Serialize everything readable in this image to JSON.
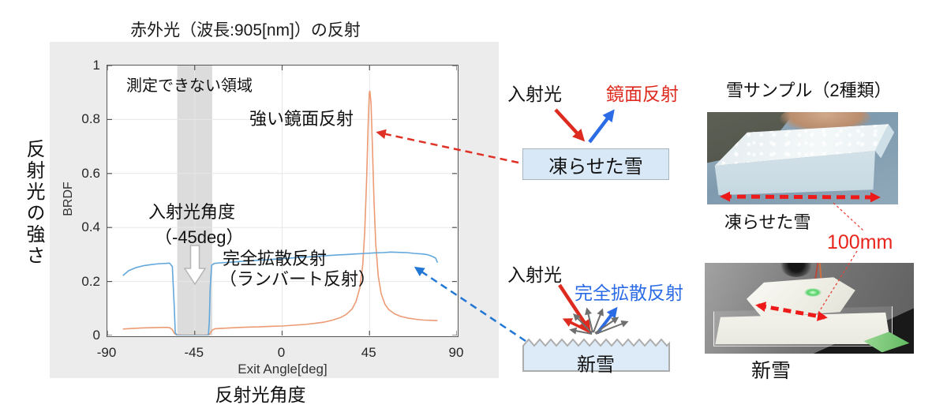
{
  "title": "赤外光（波長:905[nm]）の反射",
  "chart": {
    "y_axis_outer_label": "反射光の強さ",
    "x_axis_outer_label": "反射光角度",
    "annotations": {
      "unmeasurable_region": "測定できない領域",
      "strong_specular": "強い鏡面反射",
      "incident_angle_line1": "入射光角度",
      "incident_angle_line2": "（-45deg）",
      "perfect_diffuse_line1": "完全拡散反射",
      "perfect_diffuse_line2": "（ランバート反射）"
    }
  },
  "chart_data": {
    "type": "line",
    "title": "赤外光（波長:905[nm]）の反射",
    "xlabel": "Exit Angle[deg]",
    "ylabel": "BRDF",
    "xlim": [
      -90,
      90
    ],
    "ylim": [
      0,
      1
    ],
    "x_ticks": [
      "-90",
      "-45",
      "0",
      "45",
      "90"
    ],
    "x_tick_values": [
      -90,
      -45,
      0,
      45,
      90
    ],
    "y_ticks": [
      "0",
      "0.2",
      "0.4",
      "0.6",
      "0.8",
      "1"
    ],
    "y_tick_values": [
      0,
      0.2,
      0.4,
      0.6,
      0.8,
      1
    ],
    "grid": true,
    "legend": "none",
    "incident_angle_deg": -45,
    "unmeasurable_band_x": [
      -54,
      -36
    ],
    "series": [
      {
        "name": "凍らせた雪（強い鏡面反射）",
        "color": "#ec9b74",
        "points": [
          [
            -82,
            0.024
          ],
          [
            -77,
            0.026
          ],
          [
            -72,
            0.028
          ],
          [
            -66,
            0.029
          ],
          [
            -60,
            0.03
          ],
          [
            -58,
            0.029
          ],
          [
            -56.5,
            0.022
          ],
          [
            -55.5,
            0.008
          ],
          [
            -54.5,
            0.002
          ],
          [
            -50,
            0.001
          ],
          [
            -45,
            0.001
          ],
          [
            -40,
            0.001
          ],
          [
            -38,
            0.002
          ],
          [
            -37,
            0.008
          ],
          [
            -36,
            0.02
          ],
          [
            -34.5,
            0.025
          ],
          [
            -30,
            0.027
          ],
          [
            -24,
            0.029
          ],
          [
            -18,
            0.031
          ],
          [
            -12,
            0.032
          ],
          [
            -6,
            0.034
          ],
          [
            0,
            0.035
          ],
          [
            6,
            0.038
          ],
          [
            12,
            0.041
          ],
          [
            17,
            0.045
          ],
          [
            22,
            0.05
          ],
          [
            26,
            0.057
          ],
          [
            30,
            0.066
          ],
          [
            33,
            0.078
          ],
          [
            36,
            0.098
          ],
          [
            38,
            0.125
          ],
          [
            40,
            0.175
          ],
          [
            41.5,
            0.26
          ],
          [
            42.5,
            0.38
          ],
          [
            43.5,
            0.58
          ],
          [
            44.3,
            0.78
          ],
          [
            44.9,
            0.9
          ],
          [
            45.2,
            0.905
          ],
          [
            45.8,
            0.86
          ],
          [
            46.5,
            0.7
          ],
          [
            47.3,
            0.5
          ],
          [
            48.2,
            0.34
          ],
          [
            49.5,
            0.22
          ],
          [
            51,
            0.155
          ],
          [
            53,
            0.115
          ],
          [
            55,
            0.095
          ],
          [
            58,
            0.08
          ],
          [
            61,
            0.071
          ],
          [
            65,
            0.064
          ],
          [
            69,
            0.06
          ],
          [
            73,
            0.057
          ],
          [
            77,
            0.056
          ],
          [
            80,
            0.055
          ]
        ]
      },
      {
        "name": "新雪（完全拡散反射）",
        "color": "#63a8db",
        "points": [
          [
            -82,
            0.222
          ],
          [
            -79,
            0.24
          ],
          [
            -75,
            0.252
          ],
          [
            -71,
            0.259
          ],
          [
            -67,
            0.263
          ],
          [
            -63,
            0.266
          ],
          [
            -60,
            0.267
          ],
          [
            -58,
            0.268
          ],
          [
            -56.5,
            0.255
          ],
          [
            -55.5,
            0.1
          ],
          [
            -55,
            0.01
          ],
          [
            -54,
            0
          ],
          [
            -50,
            0
          ],
          [
            -45,
            0
          ],
          [
            -40,
            0
          ],
          [
            -38,
            0
          ],
          [
            -37.5,
            0.05
          ],
          [
            -37,
            0.18
          ],
          [
            -36.3,
            0.26
          ],
          [
            -35,
            0.267
          ],
          [
            -32,
            0.269
          ],
          [
            -27,
            0.271
          ],
          [
            -22,
            0.274
          ],
          [
            -17,
            0.276
          ],
          [
            -12,
            0.279
          ],
          [
            -7,
            0.281
          ],
          [
            -2,
            0.284
          ],
          [
            3,
            0.286
          ],
          [
            8,
            0.289
          ],
          [
            13,
            0.291
          ],
          [
            18,
            0.293
          ],
          [
            23,
            0.296
          ],
          [
            28,
            0.298
          ],
          [
            33,
            0.3
          ],
          [
            38,
            0.302
          ],
          [
            43,
            0.304
          ],
          [
            48,
            0.306
          ],
          [
            52,
            0.307
          ],
          [
            56,
            0.309
          ],
          [
            60,
            0.308
          ],
          [
            64,
            0.307
          ],
          [
            68,
            0.304
          ],
          [
            72,
            0.302
          ],
          [
            75,
            0.299
          ],
          [
            77,
            0.294
          ],
          [
            79,
            0.287
          ],
          [
            80,
            0.27
          ]
        ]
      }
    ]
  },
  "diagrams": {
    "frozen": {
      "incident": "入射光",
      "reflection": "鏡面反射",
      "surface": "凍らせた雪"
    },
    "fresh": {
      "incident": "入射光",
      "reflection": "完全拡散反射",
      "surface": "新雪"
    }
  },
  "samples": {
    "header": "雪サンプル（2種類）",
    "frozen_label": "凍らせた雪",
    "fresh_label": "新雪",
    "dimension": "100mm"
  },
  "colors": {
    "specular_series": "#ec9b74",
    "diffuse_series": "#63a8db",
    "red_accent": "#dd2b1f",
    "blue_accent": "#2b6be6",
    "connector_red": "#e03127",
    "connector_blue": "#2277d4",
    "dimension_red": "#ee1a1a",
    "panel_bg": "#ececec",
    "band_gray": "#dcdcdc",
    "surface_box_fill": "#d9e8f6"
  }
}
